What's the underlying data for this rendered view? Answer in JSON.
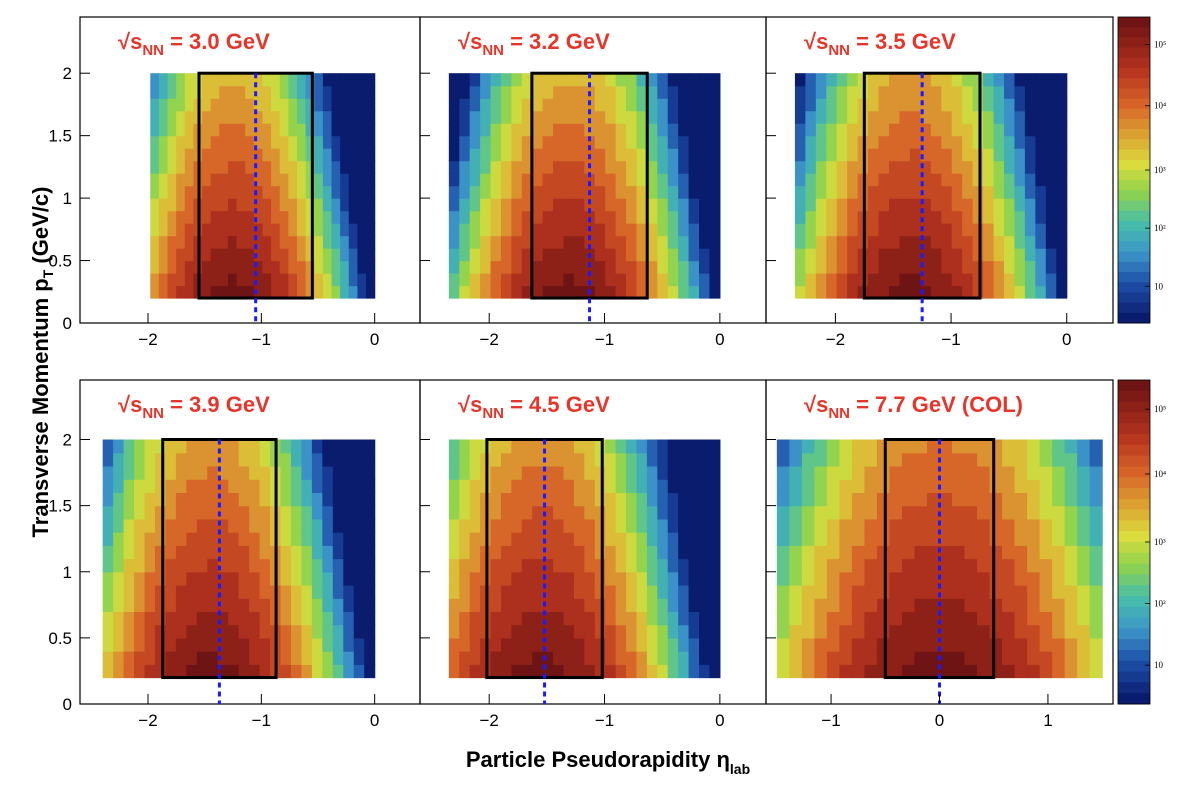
{
  "figure": {
    "xlabel_main": "Particle Pseudorapidity η",
    "xlabel_sub": "lab",
    "ylabel_main": "Transverse Momentum p",
    "ylabel_sub": "T",
    "ylabel_tail": " (GeV/c)"
  },
  "colorbar": {
    "scale": "log",
    "tick_labels": [
      "10⁵",
      "10⁴",
      "10³",
      "10²",
      "10"
    ]
  },
  "chart_data": [
    {
      "type": "heatmap",
      "title_prefix": "√s",
      "title_sub": "NN",
      "title_value": " = 3.0 GeV",
      "xlim": [
        -2.6,
        0.4
      ],
      "ylim": [
        0,
        2.45
      ],
      "xticks": [
        -2,
        -1,
        0
      ],
      "yticks": [
        0,
        0.5,
        1,
        1.5,
        2
      ],
      "data_region": {
        "eta": [
          -1.98,
          0.0
        ],
        "pt": [
          0.2,
          2.0
        ]
      },
      "peak_eta": -1.25,
      "spread": 0.9,
      "slope": 1.3,
      "selection_box": {
        "eta": [
          -1.55,
          -0.55
        ],
        "pt": [
          0.2,
          2.0
        ]
      },
      "midrapidity_line_eta": -1.05
    },
    {
      "type": "heatmap",
      "title_prefix": "√s",
      "title_sub": "NN",
      "title_value": " = 3.2 GeV",
      "xlim": [
        -2.6,
        0.4
      ],
      "ylim": [
        0,
        2.45
      ],
      "xticks": [
        -2,
        -1,
        0
      ],
      "yticks": [
        0,
        0.5,
        1,
        1.5,
        2
      ],
      "data_region": {
        "eta": [
          -2.35,
          0.0
        ],
        "pt": [
          0.2,
          2.0
        ]
      },
      "peak_eta": -1.3,
      "spread": 0.95,
      "slope": 1.25,
      "selection_box": {
        "eta": [
          -1.63,
          -0.63
        ],
        "pt": [
          0.2,
          2.0
        ]
      },
      "midrapidity_line_eta": -1.13
    },
    {
      "type": "heatmap",
      "title_prefix": "√s",
      "title_sub": "NN",
      "title_value": " = 3.5 GeV",
      "xlim": [
        -2.6,
        0.4
      ],
      "ylim": [
        0,
        2.45
      ],
      "xticks": [
        -2,
        -1,
        0
      ],
      "yticks": [
        0,
        0.5,
        1,
        1.5,
        2
      ],
      "data_region": {
        "eta": [
          -2.35,
          0.0
        ],
        "pt": [
          0.2,
          2.0
        ]
      },
      "peak_eta": -1.35,
      "spread": 1.0,
      "slope": 1.2,
      "selection_box": {
        "eta": [
          -1.75,
          -0.75
        ],
        "pt": [
          0.2,
          2.0
        ]
      },
      "midrapidity_line_eta": -1.25
    },
    {
      "type": "heatmap",
      "title_prefix": "√s",
      "title_sub": "NN",
      "title_value": " = 3.9 GeV",
      "xlim": [
        -2.6,
        0.4
      ],
      "ylim": [
        0,
        2.45
      ],
      "xticks": [
        -2,
        -1,
        0
      ],
      "yticks": [
        0,
        0.5,
        1,
        1.5,
        2
      ],
      "data_region": {
        "eta": [
          -2.4,
          0.0
        ],
        "pt": [
          0.2,
          2.0
        ]
      },
      "peak_eta": -1.45,
      "spread": 1.05,
      "slope": 1.15,
      "selection_box": {
        "eta": [
          -1.87,
          -0.87
        ],
        "pt": [
          0.2,
          2.0
        ]
      },
      "midrapidity_line_eta": -1.37
    },
    {
      "type": "heatmap",
      "title_prefix": "√s",
      "title_sub": "NN",
      "title_value": " = 4.5 GeV",
      "xlim": [
        -2.6,
        0.4
      ],
      "ylim": [
        0,
        2.45
      ],
      "xticks": [
        -2,
        -1,
        0
      ],
      "yticks": [
        0,
        0.5,
        1,
        1.5,
        2
      ],
      "data_region": {
        "eta": [
          -2.35,
          0.0
        ],
        "pt": [
          0.2,
          2.0
        ]
      },
      "peak_eta": -1.55,
      "spread": 1.1,
      "slope": 1.1,
      "selection_box": {
        "eta": [
          -2.02,
          -1.02
        ],
        "pt": [
          0.2,
          2.0
        ]
      },
      "midrapidity_line_eta": -1.52
    },
    {
      "type": "heatmap",
      "title_prefix": "√s",
      "title_sub": "NN",
      "title_value": " = 7.7 GeV (COL)",
      "xlim": [
        -1.6,
        1.6
      ],
      "ylim": [
        0,
        2.45
      ],
      "xticks": [
        -1,
        0,
        1
      ],
      "yticks": [
        0,
        0.5,
        1,
        1.5,
        2
      ],
      "data_region": {
        "eta": [
          -1.5,
          1.5
        ],
        "pt": [
          0.2,
          2.0
        ]
      },
      "peak_eta": 0.0,
      "spread": 1.6,
      "slope": 1.0,
      "selection_box": {
        "eta": [
          -0.5,
          0.5
        ],
        "pt": [
          0.2,
          2.0
        ]
      },
      "midrapidity_line_eta": 0.0
    }
  ]
}
